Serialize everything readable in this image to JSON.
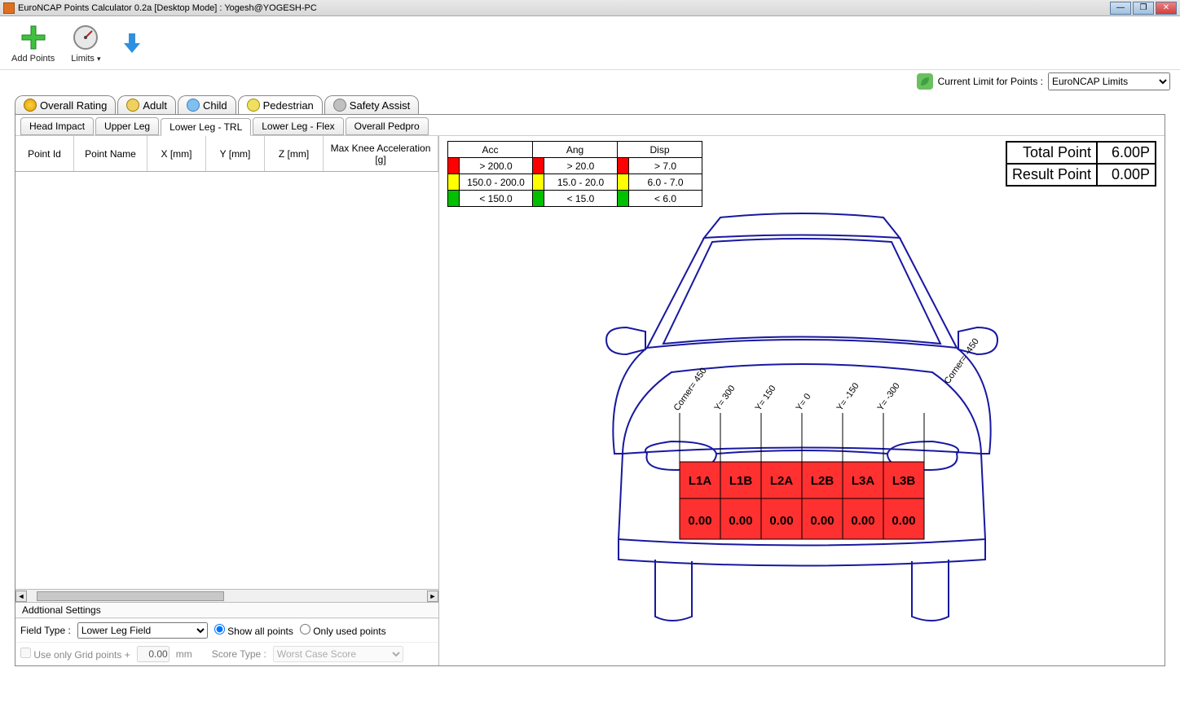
{
  "window": {
    "title": "EuroNCAP Points Calculator 0.2a [Desktop Mode] : Yogesh@YOGESH-PC"
  },
  "toolbar": {
    "add_points": "Add Points",
    "limits": "Limits"
  },
  "limit_row": {
    "label": "Current Limit for Points :",
    "selected": "EuroNCAP Limits"
  },
  "main_tabs": {
    "overall": "Overall Rating",
    "adult": "Adult",
    "child": "Child",
    "pedestrian": "Pedestrian",
    "safety": "Safety Assist"
  },
  "sub_tabs": {
    "head": "Head Impact",
    "upper": "Upper Leg",
    "lower_trl": "Lower Leg - TRL",
    "lower_flex": "Lower Leg - Flex",
    "overall_ped": "Overall Pedpro"
  },
  "grid_headers": {
    "point_id": "Point Id",
    "point_name": "Point Name",
    "x": "X [mm]",
    "y": "Y [mm]",
    "z": "Z [mm]",
    "max_knee": "Max Knee Acceleration [g]"
  },
  "settings": {
    "title": "Addtional Settings",
    "field_type_label": "Field Type  :",
    "field_type_value": "Lower Leg Field",
    "show_all": "Show all points",
    "only_used": "Only used points",
    "use_grid": "Use only Grid points +",
    "grid_value": "0.00",
    "grid_unit": "mm",
    "score_type_label": "Score Type :",
    "score_type_value": "Worst Case Score"
  },
  "legend": {
    "headers": {
      "acc": "Acc",
      "ang": "Ang",
      "disp": "Disp"
    },
    "rows": [
      {
        "color": "#ff0000",
        "acc": "> 200.0",
        "ang": "> 20.0",
        "disp": "> 7.0"
      },
      {
        "color": "#ffff00",
        "acc": "150.0 - 200.0",
        "ang": "15.0 - 20.0",
        "disp": "6.0 - 7.0"
      },
      {
        "color": "#00c000",
        "acc": "< 150.0",
        "ang": "< 15.0",
        "disp": "< 6.0"
      }
    ]
  },
  "points_box": {
    "total_label": "Total Point",
    "total_value": "6.00P",
    "result_label": "Result Point",
    "result_value": "0.00P"
  },
  "diagram": {
    "car_stroke": "#1818a0",
    "cell_fill": "#ff3030",
    "cell_stroke": "#000000",
    "corner_left": "Corner= 450",
    "corner_right": "Corner= -450",
    "y_labels": [
      "Y= 300",
      "Y= 150",
      "Y= 0",
      "Y= -150",
      "Y= -300"
    ],
    "cells": [
      {
        "id": "L1A",
        "value": "0.00"
      },
      {
        "id": "L1B",
        "value": "0.00"
      },
      {
        "id": "L2A",
        "value": "0.00"
      },
      {
        "id": "L2B",
        "value": "0.00"
      },
      {
        "id": "L3A",
        "value": "0.00"
      },
      {
        "id": "L3B",
        "value": "0.00"
      }
    ]
  }
}
